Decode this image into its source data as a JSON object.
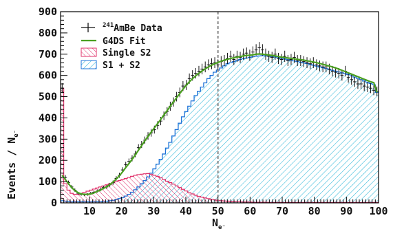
{
  "chart_data": {
    "type": "bar",
    "xlabel": "N",
    "xlabel_sub": "e⁻",
    "ylabel": "Events / N",
    "ylabel_sub": "e⁻",
    "xlim": [
      1,
      100
    ],
    "ylim": [
      0,
      900
    ],
    "xticks": [
      10,
      20,
      30,
      40,
      50,
      60,
      70,
      80,
      90,
      100
    ],
    "yticks": [
      0,
      100,
      200,
      300,
      400,
      500,
      600,
      700,
      800,
      900
    ],
    "vline_x": 50,
    "legend": [
      {
        "key": "data",
        "sup": "241",
        "label": "AmBe Data",
        "style": "errorbar"
      },
      {
        "key": "fit",
        "label": "G4DS Fit",
        "style": "line"
      },
      {
        "key": "single",
        "label": "Single S2",
        "style": "hatch-red"
      },
      {
        "key": "s1s2",
        "label": "S1 + S2",
        "style": "hatch-blue"
      }
    ],
    "x": [
      1,
      2,
      3,
      4,
      5,
      6,
      7,
      8,
      9,
      10,
      11,
      12,
      13,
      14,
      15,
      16,
      17,
      18,
      19,
      20,
      21,
      22,
      23,
      24,
      25,
      26,
      27,
      28,
      29,
      30,
      31,
      32,
      33,
      34,
      35,
      36,
      37,
      38,
      39,
      40,
      41,
      42,
      43,
      44,
      45,
      46,
      47,
      48,
      49,
      50,
      51,
      52,
      53,
      54,
      55,
      56,
      57,
      58,
      59,
      60,
      61,
      62,
      63,
      64,
      65,
      66,
      67,
      68,
      69,
      70,
      71,
      72,
      73,
      74,
      75,
      76,
      77,
      78,
      79,
      80,
      81,
      82,
      83,
      84,
      85,
      86,
      87,
      88,
      89,
      90,
      91,
      92,
      93,
      94,
      95,
      96,
      97,
      98,
      99,
      100
    ],
    "series": [
      {
        "name": "AmBe Data",
        "values": [
          540,
          120,
          95,
          75,
          60,
          45,
          40,
          38,
          40,
          45,
          50,
          55,
          62,
          72,
          75,
          85,
          95,
          115,
          130,
          155,
          180,
          195,
          210,
          230,
          260,
          275,
          295,
          315,
          330,
          345,
          365,
          385,
          410,
          430,
          455,
          475,
          500,
          520,
          550,
          555,
          585,
          600,
          610,
          620,
          630,
          640,
          650,
          655,
          660,
          650,
          665,
          670,
          680,
          690,
          675,
          690,
          685,
          700,
          705,
          695,
          710,
          720,
          730,
          720,
          700,
          690,
          685,
          700,
          680,
          675,
          690,
          670,
          675,
          685,
          670,
          670,
          665,
          660,
          655,
          660,
          650,
          645,
          640,
          640,
          630,
          620,
          615,
          610,
          600,
          620,
          590,
          580,
          570,
          560,
          560,
          550,
          545,
          540,
          530,
          525
        ]
      },
      {
        "name": "G4DS Fit",
        "values": [
          130,
          110,
          90,
          72,
          58,
          48,
          42,
          40,
          40,
          42,
          47,
          54,
          60,
          68,
          76,
          86,
          98,
          112,
          128,
          146,
          166,
          185,
          205,
          226,
          248,
          270,
          292,
          313,
          333,
          353,
          373,
          393,
          414,
          434,
          455,
          475,
          495,
          515,
          535,
          553,
          570,
          585,
          598,
          610,
          621,
          631,
          640,
          648,
          655,
          661,
          667,
          672,
          676,
          680,
          683,
          686,
          689,
          692,
          694,
          695,
          697,
          700,
          701,
          700,
          698,
          696,
          694,
          692,
          689,
          686,
          684,
          682,
          680,
          678,
          676,
          674,
          672,
          669,
          666,
          663,
          660,
          656,
          652,
          648,
          644,
          640,
          635,
          630,
          624,
          618,
          612,
          606,
          600,
          594,
          588,
          582,
          576,
          570,
          566,
          520
        ]
      },
      {
        "name": "Single S2",
        "values": [
          540,
          90,
          60,
          45,
          40,
          40,
          45,
          50,
          55,
          60,
          65,
          70,
          75,
          80,
          85,
          90,
          95,
          100,
          105,
          110,
          115,
          120,
          125,
          130,
          133,
          135,
          137,
          138,
          135,
          130,
          125,
          118,
          110,
          102,
          95,
          88,
          80,
          72,
          64,
          56,
          48,
          42,
          36,
          31,
          27,
          23,
          20,
          17,
          14,
          12,
          10,
          9,
          8,
          7,
          6,
          5,
          5,
          4,
          4,
          4,
          3,
          3,
          3,
          3,
          3,
          2,
          2,
          2,
          2,
          2,
          2,
          2,
          2,
          2,
          2,
          2,
          2,
          2,
          2,
          2,
          2,
          2,
          2,
          2,
          2,
          2,
          2,
          2,
          2,
          2,
          2,
          2,
          2,
          2,
          2,
          2,
          2,
          2,
          2,
          2
        ]
      },
      {
        "name": "S1 + S2",
        "values": [
          10,
          8,
          6,
          5,
          5,
          5,
          5,
          5,
          5,
          5,
          5,
          5,
          6,
          7,
          8,
          10,
          12,
          15,
          20,
          25,
          32,
          40,
          50,
          62,
          75,
          90,
          105,
          122,
          140,
          160,
          182,
          205,
          230,
          258,
          285,
          315,
          345,
          375,
          405,
          430,
          455,
          480,
          505,
          525,
          545,
          565,
          585,
          600,
          615,
          625,
          635,
          645,
          655,
          660,
          665,
          670,
          675,
          680,
          682,
          685,
          688,
          690,
          692,
          693,
          692,
          690,
          688,
          686,
          683,
          680,
          677,
          674,
          671,
          668,
          665,
          662,
          659,
          656,
          652,
          648,
          644,
          640,
          636,
          632,
          628,
          624,
          620,
          616,
          612,
          608,
          604,
          598,
          592,
          586,
          580,
          574,
          568,
          562,
          556,
          520
        ]
      }
    ]
  }
}
